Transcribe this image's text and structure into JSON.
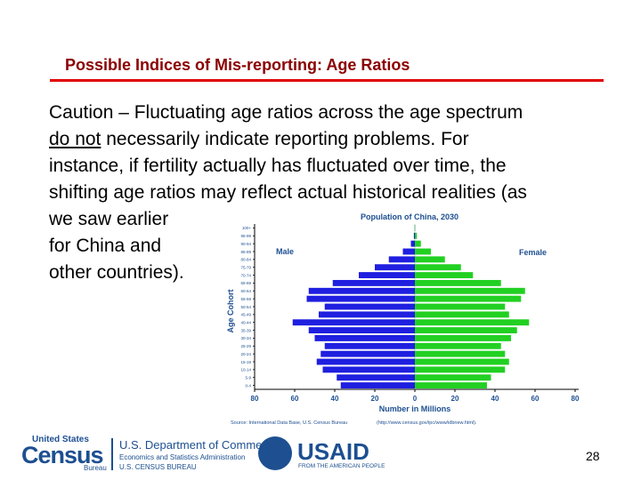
{
  "slide": {
    "title": "Possible Indices of Mis-reporting: Age Ratios",
    "body_lines": [
      {
        "underlined": "do not",
        "rest": ""
      },
      {
        "text": "Caution – Fluctuating age ratios across the age spectrum"
      },
      {
        "text": " necessarily indicate reporting problems.  For"
      },
      {
        "text": "instance, if fertility actually has fluctuated over time, the"
      },
      {
        "text": "shifting age ratios may reflect actual historical realities (as"
      },
      {
        "text": "we saw earlier"
      },
      {
        "text": "for China and"
      },
      {
        "text": "other countries)."
      }
    ],
    "page_number": "28"
  },
  "footer": {
    "census_top": "United States",
    "census_word": "Census",
    "census_bureau": "Bureau",
    "doc_line1": "U.S. Department of Commerce",
    "doc_line2": "Economics and Statistics Administration",
    "doc_line3": "U.S. CENSUS BUREAU",
    "usaid_word": "USAID",
    "usaid_sub": "FROM THE AMERICAN PEOPLE"
  },
  "colors": {
    "title": "#8b0000",
    "rule": "#e00000",
    "male": "#1f1fe0",
    "female": "#22d022",
    "brand": "#1d4f91"
  },
  "chart_data": {
    "type": "bar",
    "title": "Population of China, 2030",
    "xlabel": "Number in Millions",
    "ylabel": "Age Cohort",
    "xlim": [
      -80,
      80
    ],
    "xticks": [
      "80",
      "60",
      "40",
      "20",
      "0",
      "20",
      "40",
      "60",
      "80"
    ],
    "legend": {
      "male": "Male",
      "female": "Female"
    },
    "categories": [
      "0-4",
      "5-9",
      "10-14",
      "15-19",
      "20-24",
      "25-29",
      "30-34",
      "35-39",
      "40-44",
      "45-49",
      "50-54",
      "55-59",
      "60-64",
      "65-69",
      "70-74",
      "75-79",
      "80-84",
      "85-89",
      "90-94",
      "95-99",
      "100+"
    ],
    "series": [
      {
        "name": "Male",
        "values": [
          37,
          39,
          46,
          49,
          47,
          45,
          50,
          53,
          61,
          48,
          45,
          54,
          53,
          41,
          28,
          20,
          13,
          6,
          2,
          0.5,
          0.1
        ]
      },
      {
        "name": "Female",
        "values": [
          36,
          38,
          45,
          47,
          45,
          43,
          48,
          51,
          57,
          47,
          45,
          53,
          55,
          43,
          29,
          23,
          15,
          8,
          3,
          1,
          0.2
        ]
      }
    ],
    "source": "Source:  International Data Base, U.S. Census Bureau",
    "url": "(http://www.census.gov/ipc/www/idbnew.html)."
  }
}
